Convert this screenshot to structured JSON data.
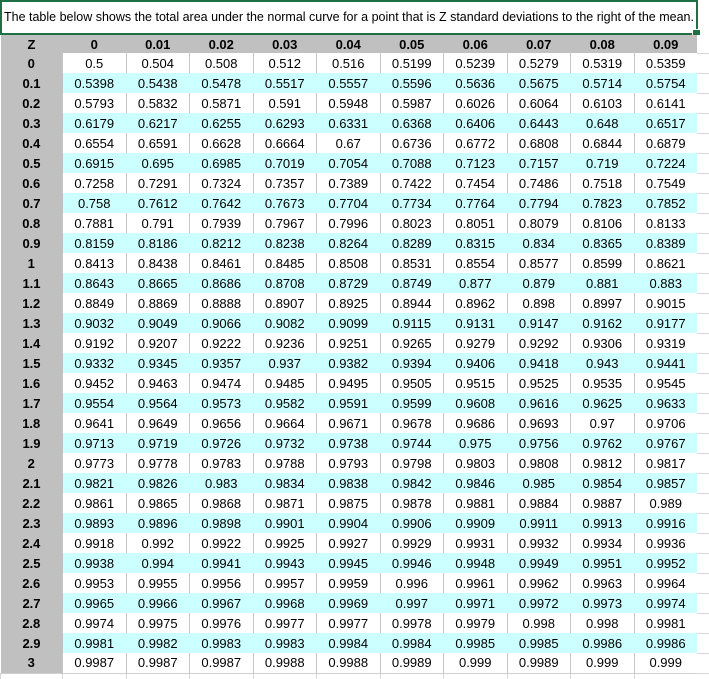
{
  "title": "The table below shows the total area under the normal curve for a point that is Z standard deviations to the right of the mean.",
  "colors": {
    "selection_green": "#1E7145",
    "header_gray": "#C0C0C0",
    "band_cyan": "#CCFFFF",
    "gridline": "#C6C6C6"
  },
  "table": {
    "corner_label": "Z",
    "column_headers": [
      "0",
      "0.01",
      "0.02",
      "0.03",
      "0.04",
      "0.05",
      "0.06",
      "0.07",
      "0.08",
      "0.09"
    ],
    "rows": [
      {
        "z": "0",
        "values": [
          "0.5",
          "0.504",
          "0.508",
          "0.512",
          "0.516",
          "0.5199",
          "0.5239",
          "0.5279",
          "0.5319",
          "0.5359"
        ]
      },
      {
        "z": "0.1",
        "values": [
          "0.5398",
          "0.5438",
          "0.5478",
          "0.5517",
          "0.5557",
          "0.5596",
          "0.5636",
          "0.5675",
          "0.5714",
          "0.5754"
        ]
      },
      {
        "z": "0.2",
        "values": [
          "0.5793",
          "0.5832",
          "0.5871",
          "0.591",
          "0.5948",
          "0.5987",
          "0.6026",
          "0.6064",
          "0.6103",
          "0.6141"
        ]
      },
      {
        "z": "0.3",
        "values": [
          "0.6179",
          "0.6217",
          "0.6255",
          "0.6293",
          "0.6331",
          "0.6368",
          "0.6406",
          "0.6443",
          "0.648",
          "0.6517"
        ]
      },
      {
        "z": "0.4",
        "values": [
          "0.6554",
          "0.6591",
          "0.6628",
          "0.6664",
          "0.67",
          "0.6736",
          "0.6772",
          "0.6808",
          "0.6844",
          "0.6879"
        ]
      },
      {
        "z": "0.5",
        "values": [
          "0.6915",
          "0.695",
          "0.6985",
          "0.7019",
          "0.7054",
          "0.7088",
          "0.7123",
          "0.7157",
          "0.719",
          "0.7224"
        ]
      },
      {
        "z": "0.6",
        "values": [
          "0.7258",
          "0.7291",
          "0.7324",
          "0.7357",
          "0.7389",
          "0.7422",
          "0.7454",
          "0.7486",
          "0.7518",
          "0.7549"
        ]
      },
      {
        "z": "0.7",
        "values": [
          "0.758",
          "0.7612",
          "0.7642",
          "0.7673",
          "0.7704",
          "0.7734",
          "0.7764",
          "0.7794",
          "0.7823",
          "0.7852"
        ]
      },
      {
        "z": "0.8",
        "values": [
          "0.7881",
          "0.791",
          "0.7939",
          "0.7967",
          "0.7996",
          "0.8023",
          "0.8051",
          "0.8079",
          "0.8106",
          "0.8133"
        ]
      },
      {
        "z": "0.9",
        "values": [
          "0.8159",
          "0.8186",
          "0.8212",
          "0.8238",
          "0.8264",
          "0.8289",
          "0.8315",
          "0.834",
          "0.8365",
          "0.8389"
        ]
      },
      {
        "z": "1",
        "values": [
          "0.8413",
          "0.8438",
          "0.8461",
          "0.8485",
          "0.8508",
          "0.8531",
          "0.8554",
          "0.8577",
          "0.8599",
          "0.8621"
        ]
      },
      {
        "z": "1.1",
        "values": [
          "0.8643",
          "0.8665",
          "0.8686",
          "0.8708",
          "0.8729",
          "0.8749",
          "0.877",
          "0.879",
          "0.881",
          "0.883"
        ]
      },
      {
        "z": "1.2",
        "values": [
          "0.8849",
          "0.8869",
          "0.8888",
          "0.8907",
          "0.8925",
          "0.8944",
          "0.8962",
          "0.898",
          "0.8997",
          "0.9015"
        ]
      },
      {
        "z": "1.3",
        "values": [
          "0.9032",
          "0.9049",
          "0.9066",
          "0.9082",
          "0.9099",
          "0.9115",
          "0.9131",
          "0.9147",
          "0.9162",
          "0.9177"
        ]
      },
      {
        "z": "1.4",
        "values": [
          "0.9192",
          "0.9207",
          "0.9222",
          "0.9236",
          "0.9251",
          "0.9265",
          "0.9279",
          "0.9292",
          "0.9306",
          "0.9319"
        ]
      },
      {
        "z": "1.5",
        "values": [
          "0.9332",
          "0.9345",
          "0.9357",
          "0.937",
          "0.9382",
          "0.9394",
          "0.9406",
          "0.9418",
          "0.943",
          "0.9441"
        ]
      },
      {
        "z": "1.6",
        "values": [
          "0.9452",
          "0.9463",
          "0.9474",
          "0.9485",
          "0.9495",
          "0.9505",
          "0.9515",
          "0.9525",
          "0.9535",
          "0.9545"
        ]
      },
      {
        "z": "1.7",
        "values": [
          "0.9554",
          "0.9564",
          "0.9573",
          "0.9582",
          "0.9591",
          "0.9599",
          "0.9608",
          "0.9616",
          "0.9625",
          "0.9633"
        ]
      },
      {
        "z": "1.8",
        "values": [
          "0.9641",
          "0.9649",
          "0.9656",
          "0.9664",
          "0.9671",
          "0.9678",
          "0.9686",
          "0.9693",
          "0.97",
          "0.9706"
        ]
      },
      {
        "z": "1.9",
        "values": [
          "0.9713",
          "0.9719",
          "0.9726",
          "0.9732",
          "0.9738",
          "0.9744",
          "0.975",
          "0.9756",
          "0.9762",
          "0.9767"
        ]
      },
      {
        "z": "2",
        "values": [
          "0.9773",
          "0.9778",
          "0.9783",
          "0.9788",
          "0.9793",
          "0.9798",
          "0.9803",
          "0.9808",
          "0.9812",
          "0.9817"
        ]
      },
      {
        "z": "2.1",
        "values": [
          "0.9821",
          "0.9826",
          "0.983",
          "0.9834",
          "0.9838",
          "0.9842",
          "0.9846",
          "0.985",
          "0.9854",
          "0.9857"
        ]
      },
      {
        "z": "2.2",
        "values": [
          "0.9861",
          "0.9865",
          "0.9868",
          "0.9871",
          "0.9875",
          "0.9878",
          "0.9881",
          "0.9884",
          "0.9887",
          "0.989"
        ]
      },
      {
        "z": "2.3",
        "values": [
          "0.9893",
          "0.9896",
          "0.9898",
          "0.9901",
          "0.9904",
          "0.9906",
          "0.9909",
          "0.9911",
          "0.9913",
          "0.9916"
        ]
      },
      {
        "z": "2.4",
        "values": [
          "0.9918",
          "0.992",
          "0.9922",
          "0.9925",
          "0.9927",
          "0.9929",
          "0.9931",
          "0.9932",
          "0.9934",
          "0.9936"
        ]
      },
      {
        "z": "2.5",
        "values": [
          "0.9938",
          "0.994",
          "0.9941",
          "0.9943",
          "0.9945",
          "0.9946",
          "0.9948",
          "0.9949",
          "0.9951",
          "0.9952"
        ]
      },
      {
        "z": "2.6",
        "values": [
          "0.9953",
          "0.9955",
          "0.9956",
          "0.9957",
          "0.9959",
          "0.996",
          "0.9961",
          "0.9962",
          "0.9963",
          "0.9964"
        ]
      },
      {
        "z": "2.7",
        "values": [
          "0.9965",
          "0.9966",
          "0.9967",
          "0.9968",
          "0.9969",
          "0.997",
          "0.9971",
          "0.9972",
          "0.9973",
          "0.9974"
        ]
      },
      {
        "z": "2.8",
        "values": [
          "0.9974",
          "0.9975",
          "0.9976",
          "0.9977",
          "0.9977",
          "0.9978",
          "0.9979",
          "0.998",
          "0.998",
          "0.9981"
        ]
      },
      {
        "z": "2.9",
        "values": [
          "0.9981",
          "0.9982",
          "0.9983",
          "0.9983",
          "0.9984",
          "0.9984",
          "0.9985",
          "0.9985",
          "0.9986",
          "0.9986"
        ]
      },
      {
        "z": "3",
        "values": [
          "0.9987",
          "0.9987",
          "0.9987",
          "0.9988",
          "0.9988",
          "0.9989",
          "0.999",
          "0.9989",
          "0.999",
          "0.999"
        ]
      }
    ]
  }
}
